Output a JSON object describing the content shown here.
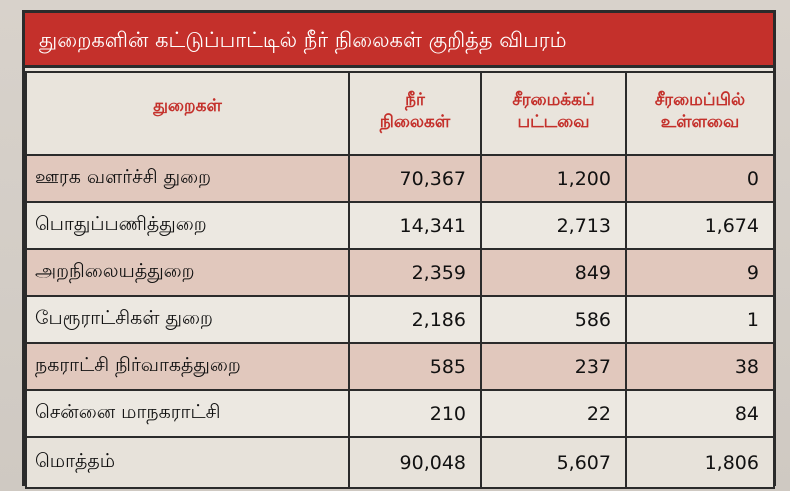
{
  "title": "துறைகளின் கட்டுப்பாட்டில் நீர் நிலைகள் குறித்த விபரம்",
  "headers": [
    {
      "line1": "துறைகள்",
      "line2": ""
    },
    {
      "line1": "நீர்",
      "line2": "நிலைகள்"
    },
    {
      "line1": "சீரமைக்கப்",
      "line2": "பட்டவை"
    },
    {
      "line1": "சீரமைப்பில்",
      "line2": "உள்ளவை"
    }
  ],
  "rows": [
    {
      "dept": "ஊரக வளர்ச்சி துறை",
      "water_bodies": "70,367",
      "renovated": "1,200",
      "under_renovation": "0"
    },
    {
      "dept": "பொதுப்பணித்துறை",
      "water_bodies": "14,341",
      "renovated": "2,713",
      "under_renovation": "1,674"
    },
    {
      "dept": "அறநிலையத்துறை",
      "water_bodies": "2,359",
      "renovated": "849",
      "under_renovation": "9"
    },
    {
      "dept": "பேரூராட்சிகள் துறை",
      "water_bodies": "2,186",
      "renovated": "586",
      "under_renovation": "1"
    },
    {
      "dept": "நகராட்சி நிர்வாகத்துறை",
      "water_bodies": "585",
      "renovated": "237",
      "under_renovation": "38"
    },
    {
      "dept": "சென்னை மாநகராட்சி",
      "water_bodies": "210",
      "renovated": "22",
      "under_renovation": "84"
    }
  ],
  "total": {
    "label": "மொத்தம்",
    "water_bodies": "90,048",
    "renovated": "5,607",
    "under_renovation": "1,806"
  },
  "colors": {
    "title_bg": "#c4302b",
    "header_text": "#c4302b",
    "shade_row": "#e1c8bd"
  }
}
